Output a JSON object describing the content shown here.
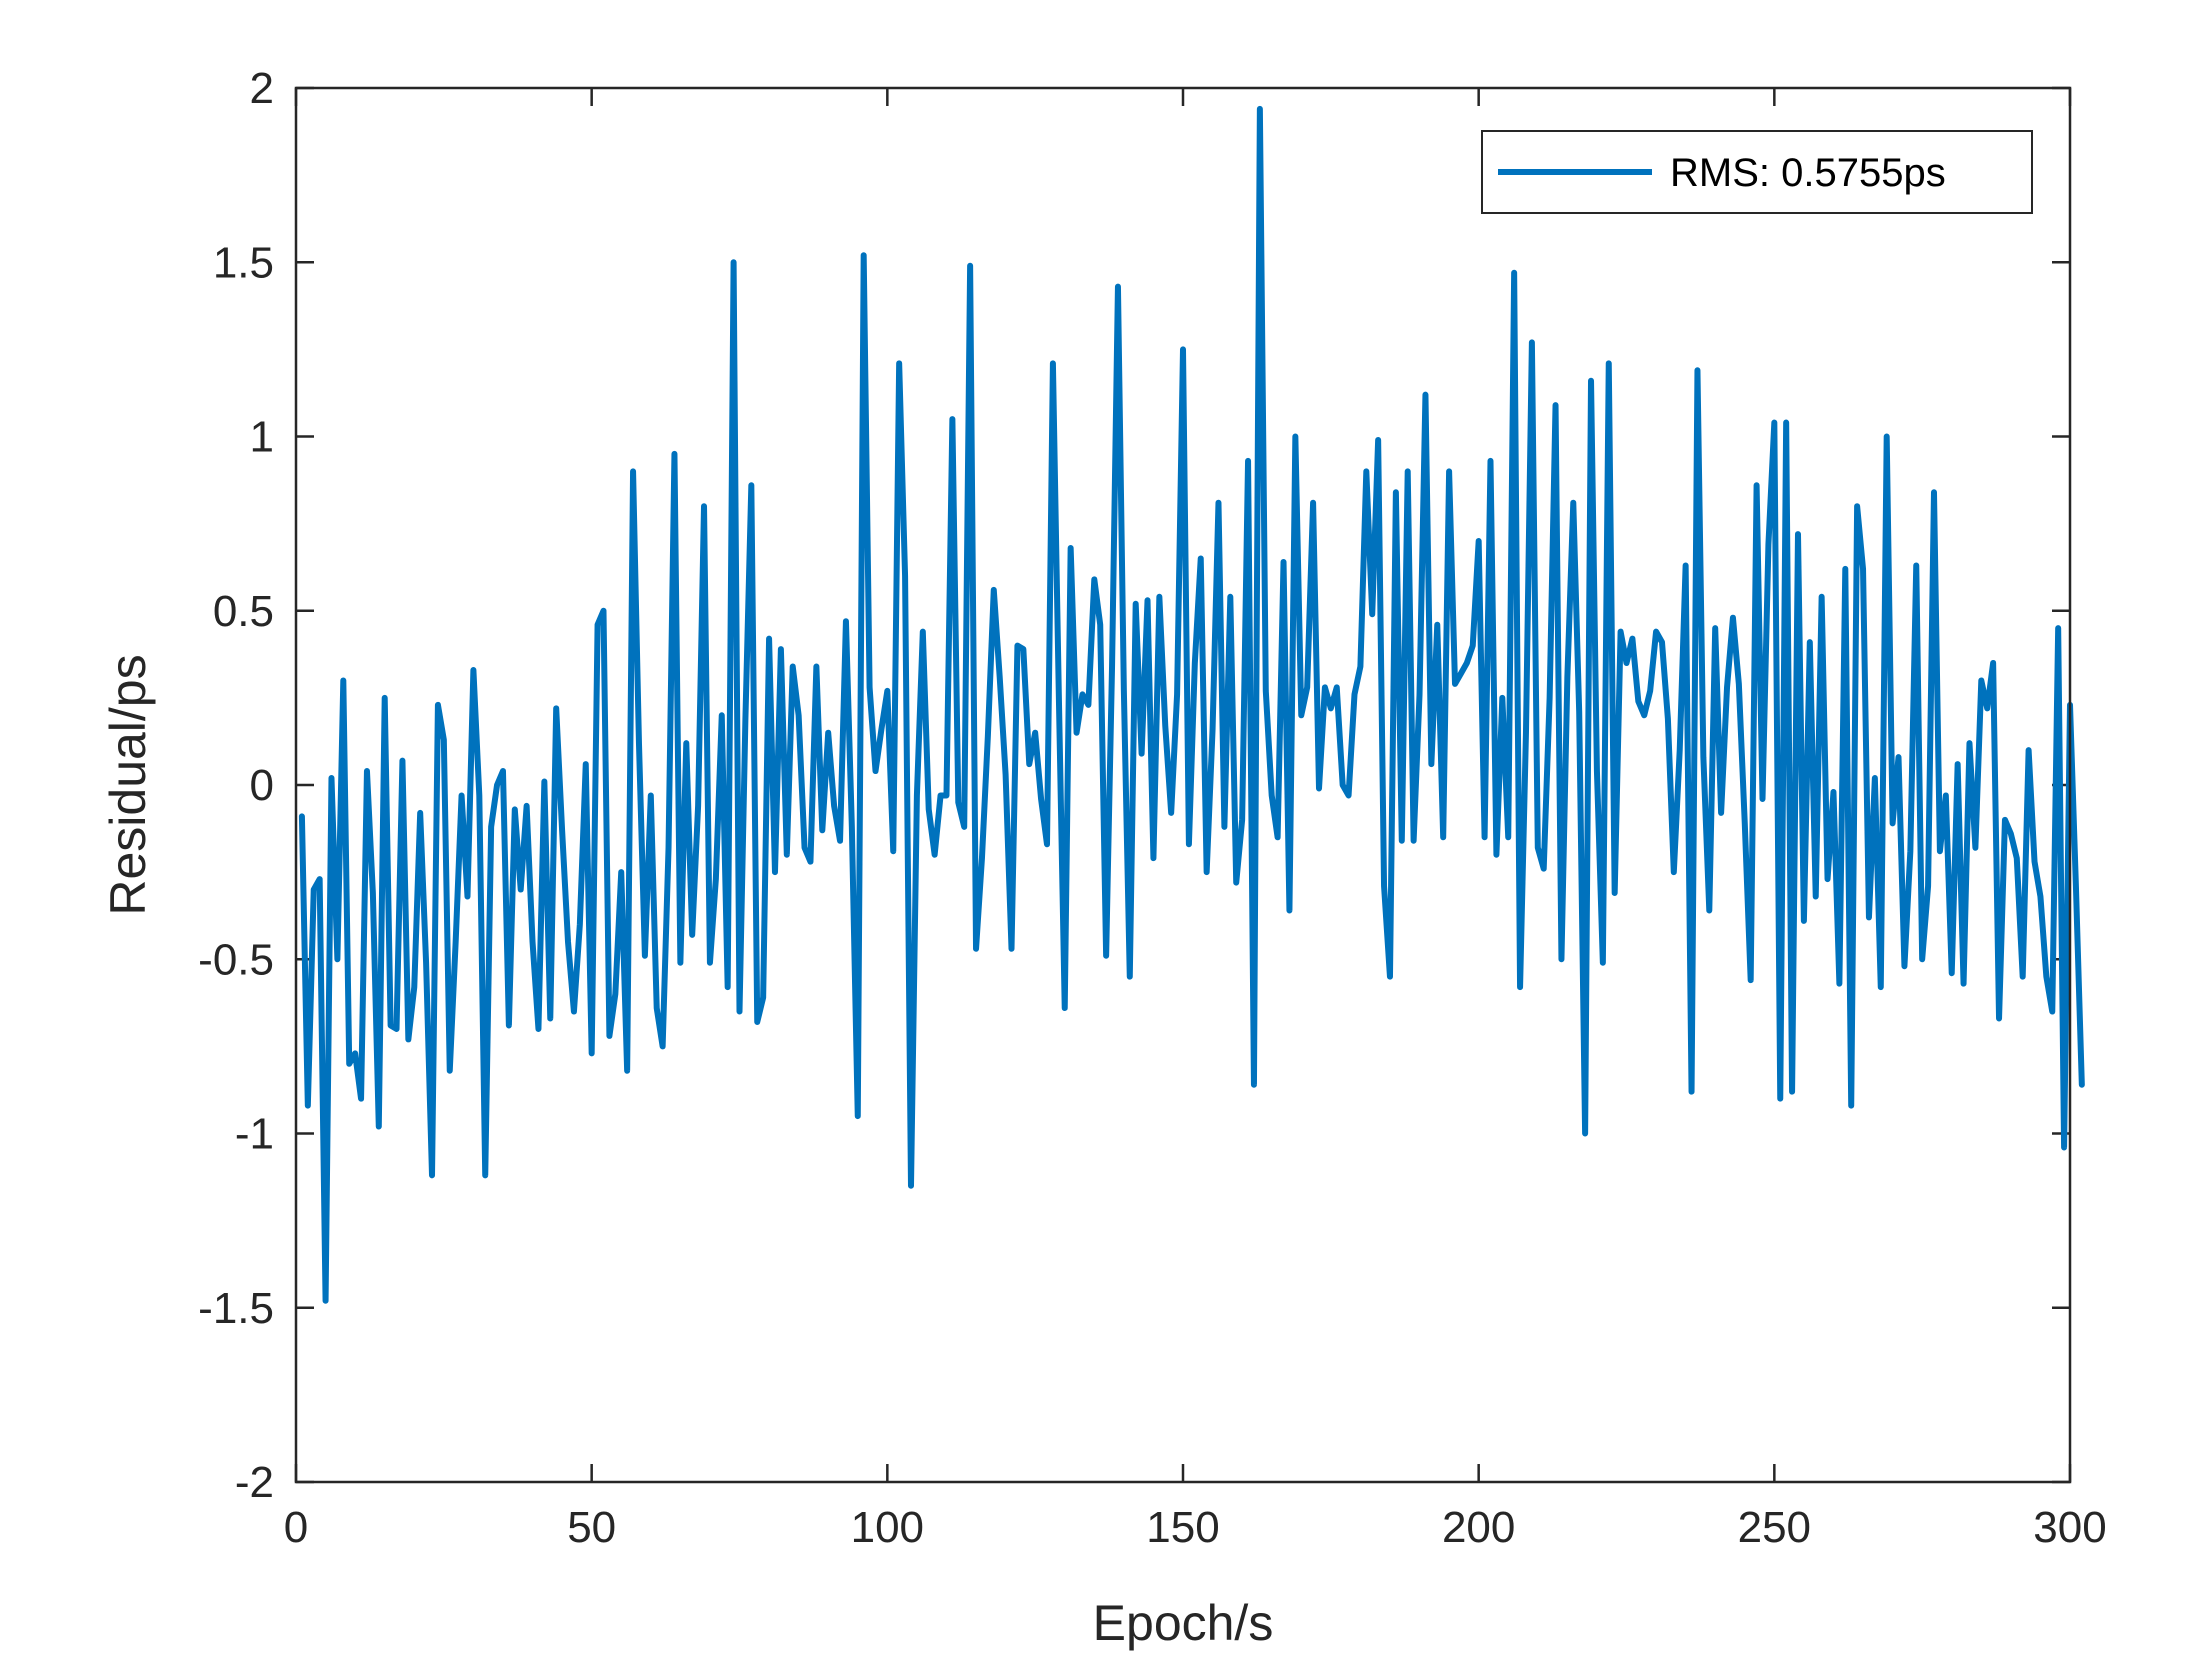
{
  "chart_data": {
    "type": "line",
    "title": "",
    "xlabel": "Epoch/s",
    "ylabel": "Residual/ps",
    "xlim": [
      0,
      300
    ],
    "ylim": [
      -2,
      2
    ],
    "xticks": [
      0,
      50,
      100,
      150,
      200,
      250,
      300
    ],
    "yticks": [
      -2,
      -1.5,
      -1,
      -0.5,
      0,
      0.5,
      1,
      1.5,
      2
    ],
    "xtick_labels": [
      "0",
      "50",
      "100",
      "150",
      "200",
      "250",
      "300"
    ],
    "ytick_labels": [
      "-2",
      "-1.5",
      "-1",
      "-0.5",
      "0",
      "0.5",
      "1",
      "1.5",
      "2"
    ],
    "grid": false,
    "box": true,
    "legend": {
      "position": "top-right",
      "entries": [
        "RMS: 0.5755ps"
      ]
    },
    "series": [
      {
        "name": "RMS: 0.5755ps",
        "color": "#0072BD",
        "x_start": 1,
        "x_step": 1,
        "y": [
          -0.09,
          -0.92,
          -0.3,
          -0.27,
          -1.48,
          0.02,
          -0.5,
          0.3,
          -0.8,
          -0.77,
          -0.9,
          0.04,
          -0.31,
          -0.98,
          0.25,
          -0.69,
          -0.7,
          0.07,
          -0.73,
          -0.58,
          -0.08,
          -0.51,
          -1.12,
          0.23,
          0.13,
          -0.82,
          -0.45,
          -0.03,
          -0.32,
          0.33,
          -0.03,
          -1.12,
          -0.12,
          0.0,
          0.04,
          -0.69,
          -0.07,
          -0.3,
          -0.06,
          -0.45,
          -0.7,
          0.01,
          -0.67,
          0.22,
          -0.13,
          -0.45,
          -0.65,
          -0.4,
          0.06,
          -0.77,
          0.46,
          0.5,
          -0.72,
          -0.6,
          -0.25,
          -0.82,
          0.9,
          0.12,
          -0.49,
          -0.03,
          -0.64,
          -0.75,
          -0.18,
          0.95,
          -0.51,
          0.12,
          -0.43,
          -0.06,
          0.8,
          -0.51,
          -0.27,
          0.2,
          -0.58,
          1.5,
          -0.65,
          0.19,
          0.86,
          -0.68,
          -0.61,
          0.42,
          -0.25,
          0.39,
          -0.2,
          0.34,
          0.2,
          -0.18,
          -0.22,
          0.34,
          -0.13,
          0.15,
          -0.06,
          -0.16,
          0.47,
          -0.12,
          -0.95,
          1.52,
          0.28,
          0.04,
          0.16,
          0.27,
          -0.19,
          1.21,
          0.6,
          -1.15,
          -0.03,
          0.44,
          -0.07,
          -0.2,
          -0.03,
          -0.03,
          1.05,
          -0.05,
          -0.12,
          1.49,
          -0.47,
          -0.21,
          0.14,
          0.56,
          0.31,
          0.03,
          -0.47,
          0.4,
          0.39,
          0.06,
          0.15,
          -0.04,
          -0.17,
          1.21,
          0.26,
          -0.64,
          0.68,
          0.15,
          0.26,
          0.23,
          0.59,
          0.46,
          -0.49,
          0.34,
          1.43,
          0.27,
          -0.55,
          0.52,
          0.09,
          0.53,
          -0.21,
          0.54,
          0.17,
          -0.08,
          0.26,
          1.25,
          -0.17,
          0.35,
          0.65,
          -0.25,
          0.16,
          0.81,
          -0.12,
          0.54,
          -0.28,
          -0.1,
          0.93,
          -0.86,
          1.94,
          0.27,
          -0.03,
          -0.15,
          0.64,
          -0.36,
          1.0,
          0.2,
          0.28,
          0.81,
          -0.01,
          0.28,
          0.22,
          0.28,
          0.0,
          -0.03,
          0.26,
          0.34,
          0.9,
          0.49,
          0.99,
          -0.29,
          -0.55,
          0.84,
          -0.16,
          0.9,
          -0.16,
          0.26,
          1.12,
          0.06,
          0.46,
          -0.15,
          0.9,
          0.29,
          0.32,
          0.35,
          0.4,
          0.7,
          -0.15,
          0.93,
          -0.2,
          0.25,
          -0.15,
          1.47,
          -0.58,
          0.15,
          1.27,
          -0.18,
          -0.24,
          0.25,
          1.09,
          -0.5,
          0.31,
          0.81,
          0.21,
          -1.0,
          1.16,
          0.04,
          -0.51,
          1.21,
          -0.31,
          0.44,
          0.35,
          0.42,
          0.24,
          0.2,
          0.27,
          0.44,
          0.41,
          0.19,
          -0.25,
          0.1,
          0.63,
          -0.88,
          1.19,
          0.08,
          -0.36,
          0.45,
          -0.08,
          0.28,
          0.48,
          0.29,
          -0.11,
          -0.56,
          0.86,
          -0.04,
          0.69,
          1.04,
          -0.9,
          1.04,
          -0.88,
          0.72,
          -0.39,
          0.41,
          -0.32,
          0.54,
          -0.27,
          -0.02,
          -0.57,
          0.62,
          -0.92,
          0.8,
          0.62,
          -0.38,
          0.02,
          -0.58,
          1.0,
          -0.11,
          0.08,
          -0.52,
          -0.19,
          0.63,
          -0.5,
          -0.29,
          0.84,
          -0.19,
          -0.03,
          -0.54,
          0.06,
          -0.57,
          0.12,
          -0.18,
          0.3,
          0.22,
          0.35,
          -0.67,
          -0.1,
          -0.14,
          -0.21,
          -0.55,
          0.1,
          -0.22,
          -0.32,
          -0.55,
          -0.65,
          0.45,
          -1.04,
          0.23,
          -0.29,
          -0.86
        ]
      }
    ]
  }
}
